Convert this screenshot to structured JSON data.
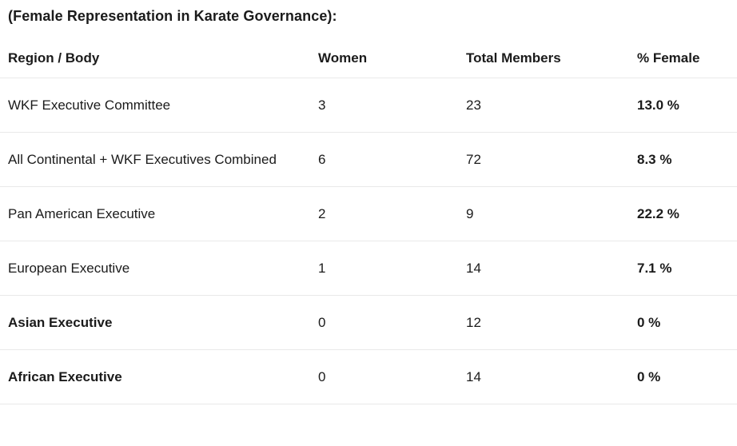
{
  "title": "(Female Representation in Karate Governance):",
  "table": {
    "headers": {
      "region": "Region / Body",
      "women": "Women",
      "total": "Total Members",
      "pct": "% Female"
    },
    "rows": [
      {
        "region": "WKF Executive Committee",
        "women": "3",
        "total": "23",
        "pct": "13.0 %"
      },
      {
        "region": "All Continental + WKF Executives Combined",
        "women": "6",
        "total": "72",
        "pct": "8.3 %"
      },
      {
        "region": "Pan American Executive",
        "women": "2",
        "total": "9",
        "pct": "22.2 %"
      },
      {
        "region": "European Executive",
        "women": "1",
        "total": "14",
        "pct": "7.1 %"
      },
      {
        "region": "Asian Executive",
        "women": "0",
        "total": "12",
        "pct": "0 %"
      },
      {
        "region": "African Executive",
        "women": "0",
        "total": "14",
        "pct": "0 %"
      }
    ]
  },
  "colors": {
    "text": "#1b1b1b",
    "separator": "#e9e9e9",
    "background": "#ffffff"
  }
}
